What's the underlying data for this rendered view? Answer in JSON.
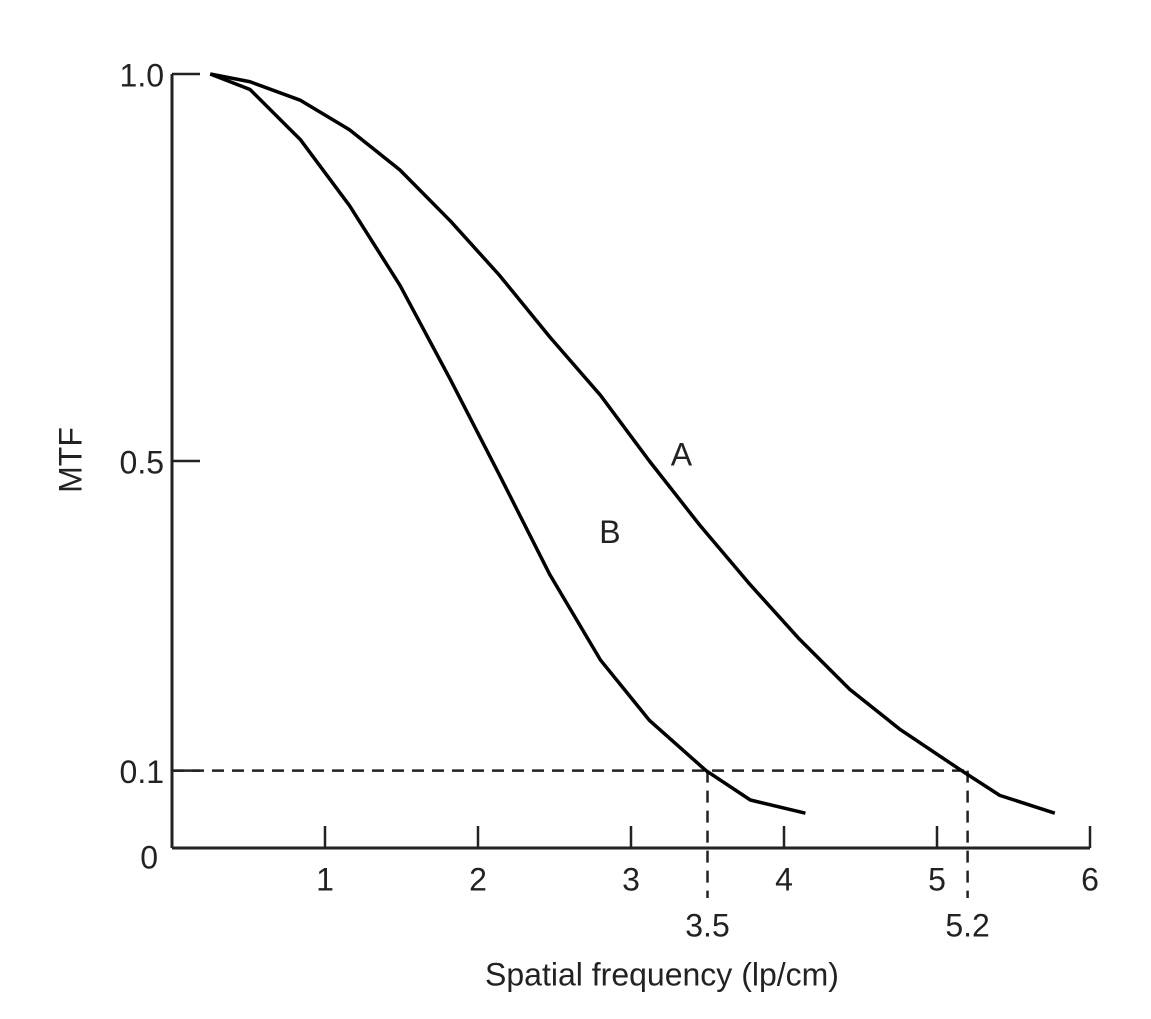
{
  "chart_data": {
    "type": "line",
    "x_label": "Spatial frequency (lp/cm)",
    "y_label": "MTF",
    "xlim": [
      0,
      6
    ],
    "ylim": [
      0,
      1
    ],
    "xticks": [
      1,
      2,
      3,
      4,
      5,
      6
    ],
    "yticks": [
      0,
      0.1,
      0.5,
      {
        "value": 1,
        "label": "1.0"
      }
    ],
    "reference_lines": {
      "y": 0.1,
      "x": [
        3.5,
        5.2
      ]
    },
    "series": [
      {
        "name": "A",
        "color": "#000000",
        "x": [
          0.25,
          0.51,
          0.84,
          1.16,
          1.49,
          1.82,
          2.14,
          2.47,
          2.8,
          3.12,
          3.45,
          3.78,
          4.1,
          4.43,
          4.76,
          5.16,
          5.41,
          5.77
        ],
        "values": [
          1.0,
          0.99,
          0.966,
          0.928,
          0.876,
          0.81,
          0.74,
          0.66,
          0.585,
          0.5,
          0.417,
          0.34,
          0.27,
          0.205,
          0.153,
          0.1,
          0.068,
          0.045
        ]
      },
      {
        "name": "B",
        "color": "#000000",
        "x": [
          0.25,
          0.51,
          0.84,
          1.16,
          1.49,
          1.82,
          2.14,
          2.47,
          2.8,
          3.12,
          3.49,
          3.78,
          4.14
        ],
        "values": [
          1.0,
          0.98,
          0.915,
          0.83,
          0.727,
          0.605,
          0.482,
          0.353,
          0.243,
          0.165,
          0.1,
          0.062,
          0.045
        ]
      }
    ]
  }
}
